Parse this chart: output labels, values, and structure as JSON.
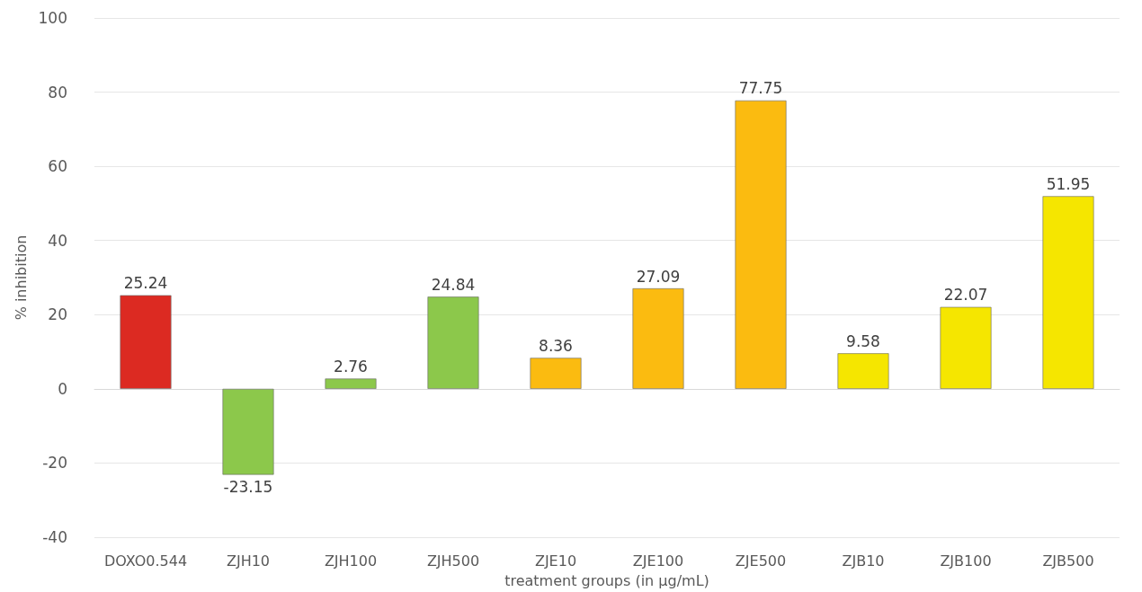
{
  "chart_data": {
    "type": "bar",
    "xlabel": "treatment groups (in µg/mL)",
    "ylabel": "% inhibition",
    "categories": [
      "DOXO0.544",
      "ZJH10",
      "ZJH100",
      "ZJH500",
      "ZJE10",
      "ZJE100",
      "ZJE500",
      "ZJB10",
      "ZJB100",
      "ZJB500"
    ],
    "values": [
      25.24,
      -23.15,
      2.76,
      24.84,
      8.36,
      27.09,
      77.75,
      9.58,
      22.07,
      51.95
    ],
    "colors": [
      "#dc2a22",
      "#8cc84b",
      "#8cc84b",
      "#8cc84b",
      "#fbbb10",
      "#fbbb10",
      "#fbbb10",
      "#f5e600",
      "#f5e600",
      "#f5e600"
    ],
    "ylim": [
      -40,
      100
    ],
    "yticks": [
      -40,
      -20,
      0,
      20,
      40,
      60,
      80,
      100
    ],
    "grid": "y",
    "data_labels": true
  }
}
